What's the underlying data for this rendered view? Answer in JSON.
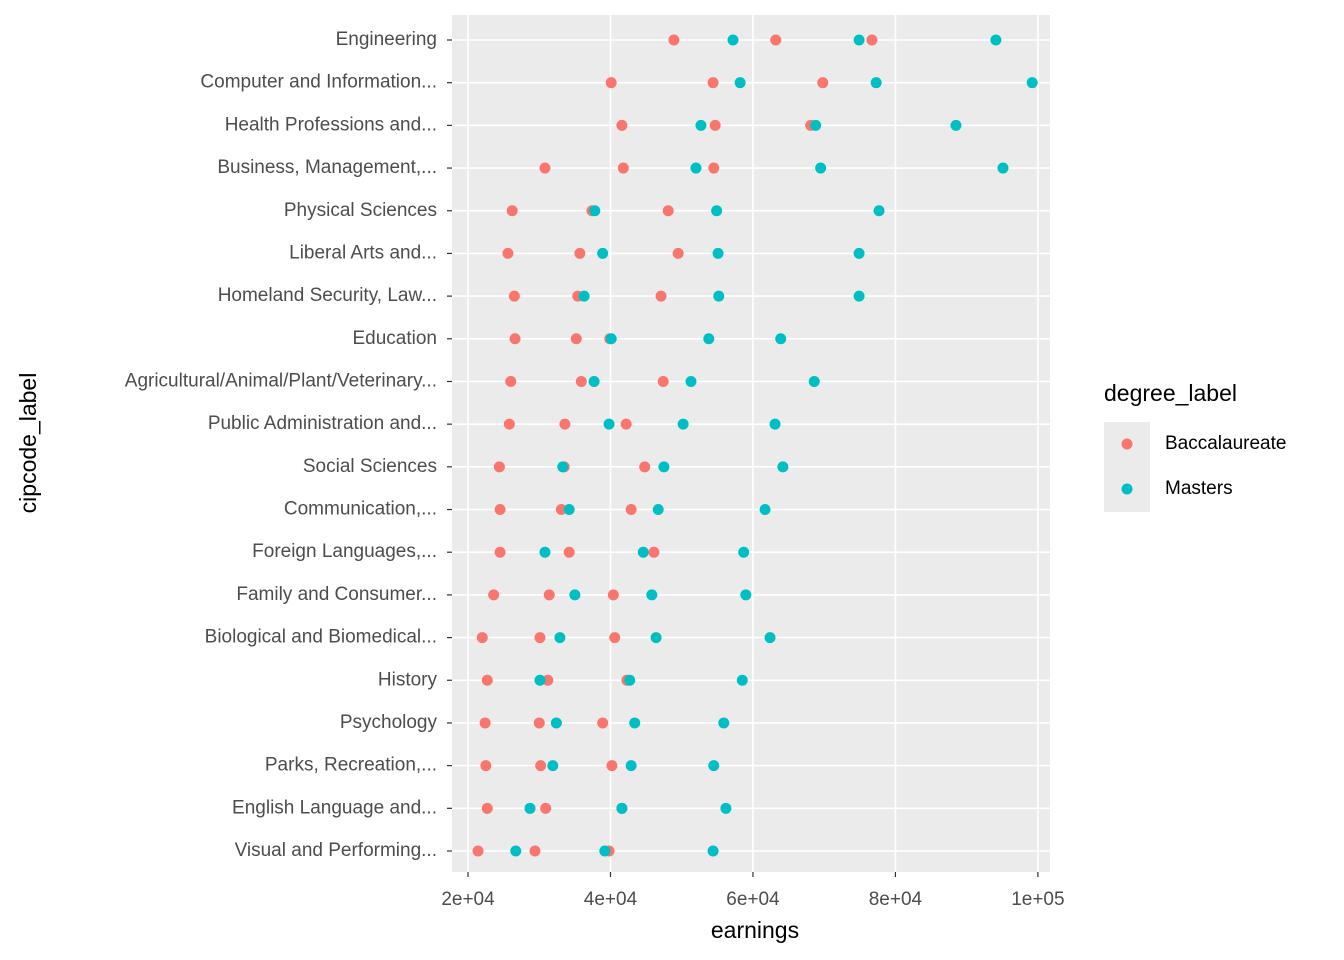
{
  "chart_data": {
    "type": "scatter",
    "x_label": "earnings",
    "y_label": "cipcode_label",
    "legend_title": "degree_label",
    "legend_position": "right",
    "grid": true,
    "xlim": [
      17750,
      101700
    ],
    "xticks": [
      {
        "value": 20000,
        "label": "2e+04"
      },
      {
        "value": 40000,
        "label": "4e+04"
      },
      {
        "value": 60000,
        "label": "6e+04"
      },
      {
        "value": 80000,
        "label": "8e+04"
      },
      {
        "value": 100000,
        "label": "1e+05"
      }
    ],
    "categories": [
      "Engineering",
      "Computer and Information...",
      "Health Professions and...",
      "Business, Management,...",
      "Physical Sciences",
      "Liberal Arts and...",
      "Homeland Security, Law...",
      "Education",
      "Agricultural/Animal/Plant/Veterinary...",
      "Public Administration and...",
      "Social Sciences",
      "Communication,...",
      "Foreign Languages,...",
      "Family and Consumer...",
      "Biological and Biomedical...",
      "History",
      "Psychology",
      "Parks, Recreation,...",
      "English Language and...",
      "Visual and Performing..."
    ],
    "series": [
      {
        "name": "Baccalaureate",
        "color": "#F8766D",
        "values": [
          [
            48900,
            63200,
            76700
          ],
          [
            40100,
            54400,
            69800
          ],
          [
            41600,
            54700,
            68100
          ],
          [
            30800,
            41800,
            54500
          ],
          [
            26200,
            37400,
            48100
          ],
          [
            25600,
            35700,
            49500
          ],
          [
            26500,
            35400,
            47100
          ],
          [
            26600,
            35200,
            39900
          ],
          [
            26000,
            35900,
            47400
          ],
          [
            25800,
            33600,
            42200
          ],
          [
            24400,
            33500,
            44800
          ],
          [
            24500,
            33100,
            42900
          ],
          [
            24500,
            34200,
            46100
          ],
          [
            23600,
            31400,
            40400
          ],
          [
            22000,
            30100,
            40600
          ],
          [
            22700,
            31200,
            42300
          ],
          [
            22400,
            30000,
            38900
          ],
          [
            22500,
            30200,
            40200
          ],
          [
            22700,
            30900,
            41600
          ],
          [
            21400,
            29400,
            39800
          ]
        ]
      },
      {
        "name": "Masters",
        "color": "#00BFC4",
        "values": [
          [
            57200,
            74900,
            94100
          ],
          [
            58200,
            77300,
            99200
          ],
          [
            52700,
            68800,
            88500
          ],
          [
            52000,
            69500,
            95100
          ],
          [
            37800,
            54900,
            77700
          ],
          [
            38900,
            55100,
            74900
          ],
          [
            36300,
            55200,
            74900
          ],
          [
            40100,
            53800,
            63900
          ],
          [
            37700,
            51300,
            68600
          ],
          [
            39800,
            50200,
            63100
          ],
          [
            33300,
            47500,
            64200
          ],
          [
            34200,
            46700,
            61700
          ],
          [
            30800,
            44600,
            58700
          ],
          [
            35000,
            45800,
            59000
          ],
          [
            32900,
            46400,
            62400
          ],
          [
            30100,
            42700,
            58500
          ],
          [
            32400,
            43400,
            55900
          ],
          [
            31900,
            42900,
            54500
          ],
          [
            28700,
            41600,
            56200
          ],
          [
            26700,
            39200,
            54400
          ]
        ]
      }
    ]
  }
}
